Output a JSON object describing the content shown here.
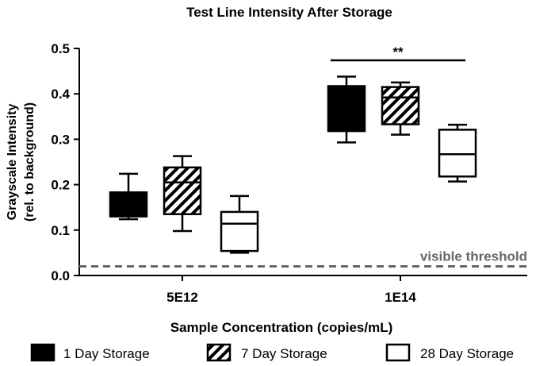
{
  "chart_data": {
    "type": "box",
    "title": "Test Line Intensity After Storage",
    "ylabel_line1": "Grayscale Intensity",
    "ylabel_line2": "(rel. to background)",
    "xlabel": "Sample Concentration (copies/mL)",
    "ylim": [
      0,
      0.5
    ],
    "yticks": [
      "0.0",
      "0.1",
      "0.2",
      "0.3",
      "0.4",
      "0.5"
    ],
    "categories": [
      "5E12",
      "1E14"
    ],
    "series": [
      {
        "name": "1 Day Storage",
        "fill": "solid",
        "boxes": [
          {
            "min": 0.124,
            "q1": 0.13,
            "median": 0.155,
            "q3": 0.183,
            "max": 0.224
          },
          {
            "min": 0.293,
            "q1": 0.318,
            "median": 0.37,
            "q3": 0.417,
            "max": 0.438
          }
        ]
      },
      {
        "name": "7 Day Storage",
        "fill": "hatched",
        "boxes": [
          {
            "min": 0.098,
            "q1": 0.135,
            "median": 0.205,
            "q3": 0.238,
            "max": 0.263
          },
          {
            "min": 0.31,
            "q1": 0.333,
            "median": 0.392,
            "q3": 0.415,
            "max": 0.425
          }
        ]
      },
      {
        "name": "28 Day Storage",
        "fill": "open",
        "boxes": [
          {
            "min": 0.05,
            "q1": 0.054,
            "median": 0.114,
            "q3": 0.14,
            "max": 0.175
          },
          {
            "min": 0.207,
            "q1": 0.218,
            "median": 0.267,
            "q3": 0.321,
            "max": 0.332
          }
        ]
      }
    ],
    "threshold": {
      "value": 0.02,
      "label": "visible threshold"
    },
    "significance": {
      "label": "**",
      "group": "1E14",
      "between": [
        "1 Day Storage",
        "28 Day Storage"
      ]
    },
    "legend": {
      "position": "bottom",
      "items": [
        "1 Day Storage",
        "7 Day Storage",
        "28 Day Storage"
      ]
    },
    "grid": false
  }
}
